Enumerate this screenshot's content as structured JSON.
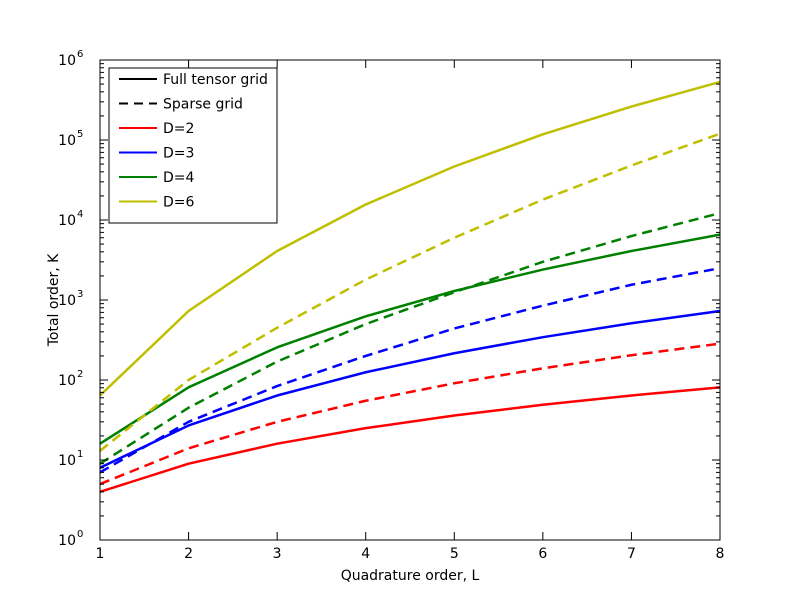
{
  "chart_data": {
    "type": "line",
    "title": "",
    "xlabel": "Quadrature order, L",
    "ylabel": "Total order, K",
    "x": [
      1,
      2,
      3,
      4,
      5,
      6,
      7,
      8
    ],
    "xlim": [
      1,
      8
    ],
    "ylim": [
      1,
      1000000
    ],
    "yscale": "log",
    "grid": false,
    "x_ticks": [
      "1",
      "2",
      "3",
      "4",
      "5",
      "6",
      "7",
      "8"
    ],
    "y_ticks": [
      {
        "base": "10",
        "exp": "0"
      },
      {
        "base": "10",
        "exp": "1"
      },
      {
        "base": "10",
        "exp": "2"
      },
      {
        "base": "10",
        "exp": "3"
      },
      {
        "base": "10",
        "exp": "4"
      },
      {
        "base": "10",
        "exp": "5"
      },
      {
        "base": "10",
        "exp": "6"
      }
    ],
    "legend": {
      "placement": "top-left",
      "entries": [
        {
          "label": "Full tensor grid",
          "color": "#000000",
          "style": "solid"
        },
        {
          "label": "Sparse grid",
          "color": "#000000",
          "style": "dashed"
        },
        {
          "label": "D=2",
          "color": "#ff0000",
          "style": "solid"
        },
        {
          "label": "D=3",
          "color": "#0000ff",
          "style": "solid"
        },
        {
          "label": "D=4",
          "color": "#008000",
          "style": "solid"
        },
        {
          "label": "D=6",
          "color": "#bfbf00",
          "style": "solid"
        }
      ]
    },
    "series": [
      {
        "grid": "Full tensor grid",
        "dimension": "D=2",
        "color": "#ff0000",
        "style": "solid",
        "values": [
          4,
          9,
          16,
          25,
          36,
          49,
          64,
          81
        ]
      },
      {
        "grid": "Sparse grid",
        "dimension": "D=2",
        "color": "#ff0000",
        "style": "dashed",
        "values": [
          5,
          14,
          30,
          55,
          91,
          140,
          204,
          285
        ]
      },
      {
        "grid": "Full tensor grid",
        "dimension": "D=3",
        "color": "#0000ff",
        "style": "solid",
        "values": [
          8,
          27,
          64,
          125,
          216,
          343,
          512,
          729
        ]
      },
      {
        "grid": "Sparse grid",
        "dimension": "D=3",
        "color": "#0000ff",
        "style": "dashed",
        "values": [
          7,
          30,
          84,
          200,
          440,
          850,
          1550,
          2500
        ]
      },
      {
        "grid": "Full tensor grid",
        "dimension": "D=4",
        "color": "#008000",
        "style": "solid",
        "values": [
          16,
          81,
          256,
          625,
          1296,
          2401,
          4096,
          6561
        ]
      },
      {
        "grid": "Sparse grid",
        "dimension": "D=4",
        "color": "#008000",
        "style": "dashed",
        "values": [
          9,
          45,
          170,
          500,
          1250,
          3000,
          6300,
          12200
        ]
      },
      {
        "grid": "Full tensor grid",
        "dimension": "D=6",
        "color": "#bfbf00",
        "style": "solid",
        "values": [
          64,
          729,
          4096,
          15625,
          46656,
          117649,
          262144,
          531441
        ]
      },
      {
        "grid": "Sparse grid",
        "dimension": "D=6",
        "color": "#bfbf00",
        "style": "dashed",
        "values": [
          13,
          100,
          450,
          1800,
          6000,
          18000,
          48000,
          120000
        ]
      }
    ]
  }
}
